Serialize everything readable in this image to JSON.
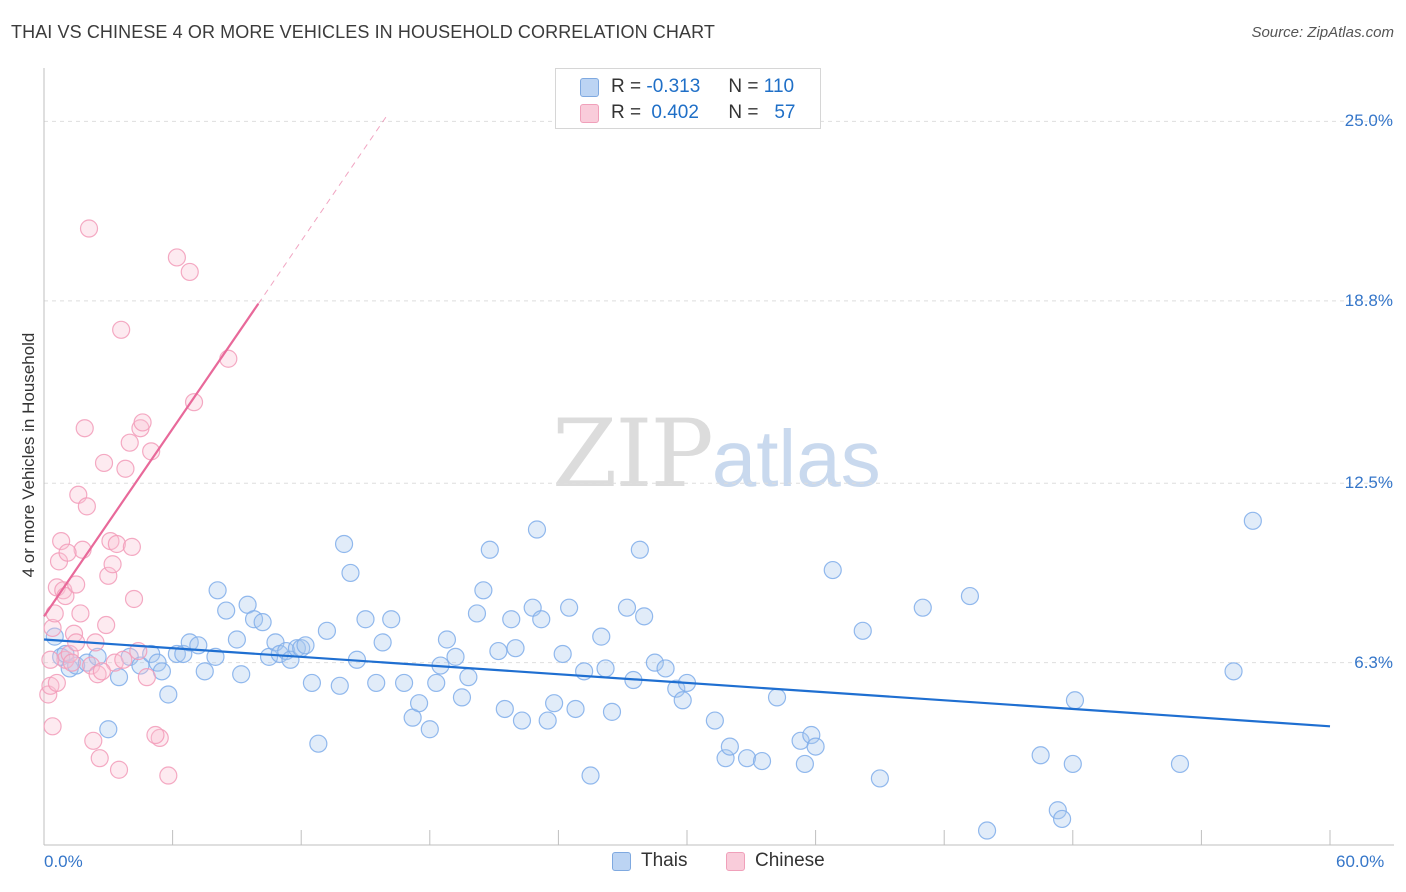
{
  "title": "THAI VS CHINESE 4 OR MORE VEHICLES IN HOUSEHOLD CORRELATION CHART",
  "source": "Source: ZipAtlas.com",
  "watermark": {
    "zip": "ZIP",
    "atlas": "atlas"
  },
  "legend": {
    "rows": [
      {
        "r_label": "R =",
        "r_value": "-0.313",
        "n_label": "N =",
        "n_value": "110",
        "color": "#a9c8ee"
      },
      {
        "r_label": "R =",
        "r_value": "0.402",
        "n_label": "N =",
        "n_value": "57",
        "color": "#f4b8cc"
      }
    ]
  },
  "bottom_legend": [
    "Thais",
    "Chinese"
  ],
  "chart_data": {
    "type": "scatter",
    "xlabel": "",
    "ylabel": "4 or more Vehicles in Household",
    "xlim": [
      0,
      60
    ],
    "ylim": [
      0,
      26.5
    ],
    "x_tick_labels": [
      "0.0%",
      "60.0%"
    ],
    "y_ticks": [
      6.3,
      12.5,
      18.8,
      25.0
    ],
    "y_tick_labels": [
      "6.3%",
      "12.5%",
      "18.8%",
      "25.0%"
    ],
    "grid": "horizontal dashed",
    "colors": {
      "Thais": "#7fadea",
      "Chinese": "#f29bb8",
      "thai_line": "#1f6fd1",
      "chinese_line": "#e8699a",
      "tick": "#3576c9"
    },
    "series": [
      {
        "name": "Thais",
        "points": [
          [
            0.5,
            7.2
          ],
          [
            0.8,
            6.5
          ],
          [
            1.0,
            6.6
          ],
          [
            1.2,
            6.1
          ],
          [
            1.5,
            6.2
          ],
          [
            2.0,
            6.3
          ],
          [
            2.5,
            6.5
          ],
          [
            3.0,
            4.0
          ],
          [
            3.5,
            5.8
          ],
          [
            4.0,
            6.5
          ],
          [
            4.5,
            6.2
          ],
          [
            5.0,
            6.6
          ],
          [
            5.3,
            6.3
          ],
          [
            5.5,
            6.0
          ],
          [
            5.8,
            5.2
          ],
          [
            6.2,
            6.6
          ],
          [
            6.5,
            6.6
          ],
          [
            6.8,
            7.0
          ],
          [
            7.2,
            6.9
          ],
          [
            7.5,
            6.0
          ],
          [
            8.0,
            6.5
          ],
          [
            8.1,
            8.8
          ],
          [
            8.5,
            8.1
          ],
          [
            9.0,
            7.1
          ],
          [
            9.2,
            5.9
          ],
          [
            9.5,
            8.3
          ],
          [
            9.8,
            7.8
          ],
          [
            10.2,
            7.7
          ],
          [
            10.5,
            6.5
          ],
          [
            10.8,
            7.0
          ],
          [
            11.0,
            6.6
          ],
          [
            11.3,
            6.7
          ],
          [
            11.5,
            6.4
          ],
          [
            11.8,
            6.8
          ],
          [
            12.0,
            6.8
          ],
          [
            12.2,
            6.9
          ],
          [
            12.5,
            5.6
          ],
          [
            12.8,
            3.5
          ],
          [
            13.2,
            7.4
          ],
          [
            13.8,
            5.5
          ],
          [
            14.0,
            10.4
          ],
          [
            14.3,
            9.4
          ],
          [
            14.6,
            6.4
          ],
          [
            15.0,
            7.8
          ],
          [
            15.5,
            5.6
          ],
          [
            15.8,
            7.0
          ],
          [
            16.2,
            7.8
          ],
          [
            16.8,
            5.6
          ],
          [
            17.2,
            4.4
          ],
          [
            17.5,
            4.9
          ],
          [
            18.0,
            4.0
          ],
          [
            18.3,
            5.6
          ],
          [
            18.5,
            6.2
          ],
          [
            18.8,
            7.1
          ],
          [
            19.2,
            6.5
          ],
          [
            19.5,
            5.1
          ],
          [
            19.8,
            5.8
          ],
          [
            20.2,
            8.0
          ],
          [
            20.5,
            8.8
          ],
          [
            20.8,
            10.2
          ],
          [
            21.2,
            6.7
          ],
          [
            21.5,
            4.7
          ],
          [
            21.8,
            7.8
          ],
          [
            22.0,
            6.8
          ],
          [
            22.3,
            4.3
          ],
          [
            22.8,
            8.2
          ],
          [
            23.0,
            10.9
          ],
          [
            23.2,
            7.8
          ],
          [
            23.5,
            4.3
          ],
          [
            23.8,
            4.9
          ],
          [
            24.2,
            6.6
          ],
          [
            24.5,
            8.2
          ],
          [
            24.8,
            4.7
          ],
          [
            25.2,
            6.0
          ],
          [
            25.5,
            2.4
          ],
          [
            26.0,
            7.2
          ],
          [
            26.2,
            6.1
          ],
          [
            26.5,
            4.6
          ],
          [
            27.2,
            8.2
          ],
          [
            27.5,
            5.7
          ],
          [
            27.8,
            10.2
          ],
          [
            28.0,
            7.9
          ],
          [
            28.5,
            6.3
          ],
          [
            29.0,
            6.1
          ],
          [
            29.5,
            5.4
          ],
          [
            29.8,
            5.0
          ],
          [
            30.0,
            5.6
          ],
          [
            31.3,
            4.3
          ],
          [
            31.8,
            3.0
          ],
          [
            32.0,
            3.4
          ],
          [
            32.8,
            3.0
          ],
          [
            33.5,
            2.9
          ],
          [
            34.2,
            5.1
          ],
          [
            35.3,
            3.6
          ],
          [
            35.5,
            2.8
          ],
          [
            35.8,
            3.8
          ],
          [
            36.0,
            3.4
          ],
          [
            36.8,
            9.5
          ],
          [
            38.2,
            7.4
          ],
          [
            39.0,
            2.3
          ],
          [
            41.0,
            8.2
          ],
          [
            43.2,
            8.6
          ],
          [
            44.0,
            0.5
          ],
          [
            46.5,
            3.1
          ],
          [
            47.3,
            1.2
          ],
          [
            47.5,
            0.9
          ],
          [
            48.0,
            2.8
          ],
          [
            48.1,
            5.0
          ],
          [
            53.0,
            2.8
          ],
          [
            55.5,
            6.0
          ],
          [
            56.4,
            11.2
          ]
        ]
      },
      {
        "name": "Chinese",
        "points": [
          [
            0.2,
            5.2
          ],
          [
            0.3,
            5.5
          ],
          [
            0.4,
            7.5
          ],
          [
            0.5,
            8.0
          ],
          [
            0.6,
            8.9
          ],
          [
            0.8,
            10.5
          ],
          [
            1.0,
            6.4
          ],
          [
            1.2,
            6.6
          ],
          [
            1.3,
            6.3
          ],
          [
            1.4,
            7.3
          ],
          [
            1.5,
            7.0
          ],
          [
            1.6,
            12.1
          ],
          [
            1.8,
            10.2
          ],
          [
            2.0,
            11.7
          ],
          [
            2.1,
            21.3
          ],
          [
            2.2,
            6.2
          ],
          [
            2.3,
            3.6
          ],
          [
            2.5,
            5.9
          ],
          [
            2.8,
            13.2
          ],
          [
            3.0,
            9.3
          ],
          [
            3.1,
            10.5
          ],
          [
            3.2,
            9.7
          ],
          [
            3.3,
            6.3
          ],
          [
            3.5,
            2.6
          ],
          [
            3.8,
            13.0
          ],
          [
            4.0,
            13.9
          ],
          [
            4.5,
            14.4
          ],
          [
            4.6,
            14.6
          ],
          [
            5.0,
            13.6
          ],
          [
            5.4,
            3.7
          ],
          [
            5.8,
            2.4
          ],
          [
            6.2,
            20.3
          ],
          [
            6.8,
            19.8
          ],
          [
            7.0,
            15.3
          ],
          [
            8.6,
            16.8
          ],
          [
            0.4,
            4.1
          ],
          [
            0.7,
            9.8
          ],
          [
            0.9,
            8.8
          ],
          [
            1.1,
            10.1
          ],
          [
            1.7,
            8.0
          ],
          [
            1.9,
            14.4
          ],
          [
            2.4,
            7.0
          ],
          [
            2.6,
            3.0
          ],
          [
            2.7,
            6.0
          ],
          [
            3.4,
            10.4
          ],
          [
            3.6,
            17.8
          ],
          [
            3.7,
            6.4
          ],
          [
            4.1,
            10.3
          ],
          [
            4.2,
            8.5
          ],
          [
            4.4,
            6.7
          ],
          [
            4.8,
            5.8
          ],
          [
            5.2,
            3.8
          ],
          [
            0.3,
            6.4
          ],
          [
            0.6,
            5.6
          ],
          [
            1.0,
            8.6
          ],
          [
            1.5,
            9.0
          ],
          [
            2.9,
            7.6
          ]
        ]
      }
    ],
    "trend_lines": [
      {
        "series": "Thais",
        "from": [
          0.0,
          7.1
        ],
        "to": [
          60.0,
          4.1
        ],
        "style": "solid"
      },
      {
        "series": "Chinese",
        "from": [
          0.0,
          7.9
        ],
        "to": [
          10.0,
          18.7
        ],
        "style": "solid"
      },
      {
        "series": "Chinese",
        "from": [
          10.0,
          18.7
        ],
        "to": [
          16.0,
          25.2
        ],
        "style": "dashed"
      }
    ]
  }
}
